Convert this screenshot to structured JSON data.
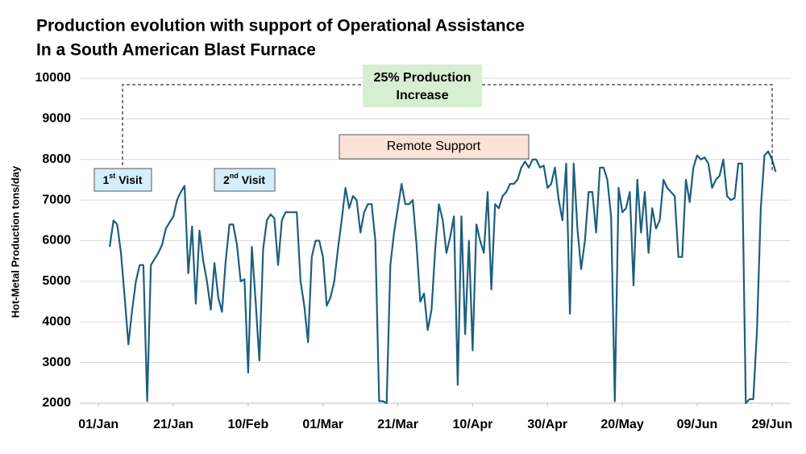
{
  "chart_data": {
    "type": "line",
    "title": [
      "Production evolution with support of Operational Assistance",
      "In a South American Blast Furnace"
    ],
    "y_label": "Hot-Metal Production tons/day",
    "annotations": {
      "increase": [
        "25% Production",
        "Increase"
      ],
      "remote": "Remote Support",
      "visit1": {
        "number": "1",
        "sup": "st",
        "text": "Visit"
      },
      "visit2": {
        "number": "2",
        "sup": "nd",
        "text": "Visit"
      }
    },
    "xlim": [
      -5,
      185
    ],
    "xticks": [
      {
        "value": 0,
        "label": "01/Jan"
      },
      {
        "value": 20,
        "label": "21/Jan"
      },
      {
        "value": 40,
        "label": "10/Feb"
      },
      {
        "value": 60,
        "label": "01/Mar"
      },
      {
        "value": 80,
        "label": "21/Mar"
      },
      {
        "value": 100,
        "label": "10/Apr"
      },
      {
        "value": 120,
        "label": "30/Apr"
      },
      {
        "value": 140,
        "label": "20/May"
      },
      {
        "value": 160,
        "label": "09/Jun"
      },
      {
        "value": 180,
        "label": "29/Jun"
      }
    ],
    "ylim": [
      2000,
      10000
    ],
    "yticks": [
      2000,
      3000,
      4000,
      5000,
      6000,
      7000,
      8000,
      9000,
      10000
    ],
    "grid": true,
    "x": [
      3,
      4,
      5,
      6,
      7,
      8,
      9,
      10,
      11,
      12,
      13,
      14,
      15,
      16,
      17,
      18,
      19,
      20,
      21,
      22,
      23,
      24,
      25,
      26,
      27,
      28,
      29,
      30,
      31,
      32,
      33,
      34,
      35,
      36,
      37,
      38,
      39,
      40,
      41,
      42,
      43,
      44,
      45,
      46,
      47,
      48,
      49,
      50,
      51,
      52,
      53,
      54,
      55,
      56,
      57,
      58,
      59,
      60,
      61,
      62,
      63,
      64,
      65,
      66,
      67,
      68,
      69,
      70,
      71,
      72,
      73,
      74,
      75,
      76,
      77,
      78,
      79,
      80,
      81,
      82,
      83,
      84,
      85,
      86,
      87,
      88,
      89,
      90,
      91,
      92,
      93,
      94,
      95,
      96,
      97,
      98,
      99,
      100,
      101,
      102,
      103,
      104,
      105,
      106,
      107,
      108,
      109,
      110,
      111,
      112,
      113,
      114,
      115,
      116,
      117,
      118,
      119,
      120,
      121,
      122,
      123,
      124,
      125,
      126,
      127,
      128,
      129,
      130,
      131,
      132,
      133,
      134,
      135,
      136,
      137,
      138,
      139,
      140,
      141,
      142,
      143,
      144,
      145,
      146,
      147,
      148,
      149,
      150,
      151,
      152,
      153,
      154,
      155,
      156,
      157,
      158,
      159,
      160,
      161,
      162,
      163,
      164,
      165,
      166,
      167,
      168,
      169,
      170,
      171,
      172,
      173,
      174,
      175,
      176,
      177,
      178,
      179,
      180,
      181
    ],
    "series": [
      {
        "name": "Hot-Metal Production",
        "color": "#1d5e7e",
        "values": [
          5850,
          6500,
          6400,
          5700,
          4600,
          3450,
          4300,
          5000,
          5400,
          5400,
          2050,
          5400,
          5550,
          5700,
          5900,
          6300,
          6450,
          6600,
          7000,
          7200,
          7350,
          5200,
          6350,
          4450,
          6250,
          5500,
          5000,
          4300,
          5450,
          4600,
          4250,
          5500,
          6400,
          6400,
          5900,
          5000,
          5050,
          2750,
          5850,
          4500,
          3050,
          5800,
          6500,
          6650,
          6550,
          5400,
          6500,
          6700,
          6700,
          6700,
          6700,
          5000,
          4400,
          3500,
          5600,
          6000,
          6000,
          5600,
          4400,
          4600,
          5000,
          5800,
          6500,
          7300,
          6800,
          7100,
          7000,
          6200,
          6700,
          6900,
          6900,
          6000,
          2050,
          2050,
          2000,
          5400,
          6200,
          6800,
          7400,
          6900,
          6900,
          7000,
          5900,
          4500,
          4700,
          3800,
          4300,
          5800,
          6900,
          6500,
          5700,
          6100,
          6600,
          2450,
          6600,
          3700,
          6000,
          3300,
          6400,
          6000,
          5700,
          7200,
          4800,
          6900,
          6800,
          7100,
          7200,
          7400,
          7400,
          7500,
          7800,
          7950,
          7800,
          8000,
          8000,
          7800,
          7850,
          7300,
          7400,
          7800,
          7000,
          6500,
          7900,
          4200,
          7900,
          6300,
          5300,
          6000,
          7200,
          7200,
          6200,
          7800,
          7800,
          7500,
          6600,
          2050,
          7300,
          6700,
          6800,
          7200,
          4900,
          7500,
          6200,
          7200,
          5700,
          6800,
          6300,
          6500,
          7500,
          7300,
          7200,
          7100,
          5600,
          5600,
          7500,
          6950,
          7800,
          8100,
          8000,
          8050,
          7900,
          7300,
          7500,
          7600,
          8000,
          7100,
          7000,
          7050,
          7900,
          7900,
          2000,
          2100,
          2100,
          3800,
          6800,
          8100,
          8200,
          8000,
          7700
        ]
      }
    ]
  }
}
